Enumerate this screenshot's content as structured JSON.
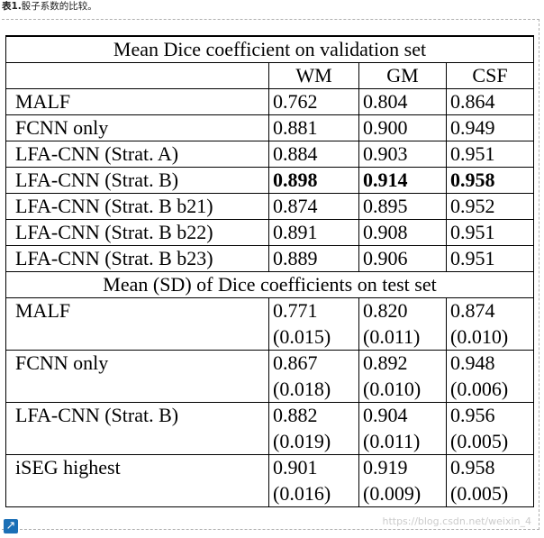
{
  "caption": {
    "prefix": "表1.",
    "text": "骰子系数的比较。"
  },
  "table": {
    "validation_title": "Mean Dice coefficient on validation set",
    "columns": [
      "WM",
      "GM",
      "CSF"
    ],
    "validation_rows": [
      {
        "label": "MALF",
        "wm": "0.762",
        "gm": "0.804",
        "csf": "0.864"
      },
      {
        "label": "FCNN only",
        "wm": "0.881",
        "gm": "0.900",
        "csf": "0.949"
      },
      {
        "label": "LFA-CNN (Strat. A)",
        "wm": "0.884",
        "gm": "0.903",
        "csf": "0.951"
      },
      {
        "label": "LFA-CNN (Strat. B)",
        "wm": "0.898",
        "gm": "0.914",
        "csf": "0.958"
      },
      {
        "label": "LFA-CNN (Strat. B b21)",
        "wm": "0.874",
        "gm": "0.895",
        "csf": "0.952"
      },
      {
        "label": "LFA-CNN (Strat. B b22)",
        "wm": "0.891",
        "gm": "0.908",
        "csf": "0.951"
      },
      {
        "label": "LFA-CNN (Strat. B b23)",
        "wm": "0.889",
        "gm": "0.906",
        "csf": "0.951"
      }
    ],
    "test_title": "Mean (SD) of Dice coefficients on test set",
    "test_rows": [
      {
        "label": "MALF",
        "wm": "0.771",
        "wm_sd": "(0.015)",
        "gm": "0.820",
        "gm_sd": "(0.011)",
        "csf": "0.874",
        "csf_sd": "(0.010)"
      },
      {
        "label": "FCNN only",
        "wm": "0.867",
        "wm_sd": "(0.018)",
        "gm": "0.892",
        "gm_sd": "(0.010)",
        "csf": "0.948",
        "csf_sd": "(0.006)"
      },
      {
        "label": "LFA-CNN (Strat. B)",
        "wm": "0.882",
        "wm_sd": "(0.019)",
        "gm": "0.904",
        "gm_sd": "(0.011)",
        "csf": "0.956",
        "csf_sd": "(0.005)"
      },
      {
        "label": "iSEG highest",
        "wm": "0.901",
        "wm_sd": "(0.016)",
        "gm": "0.919",
        "gm_sd": "(0.009)",
        "csf": "0.958",
        "csf_sd": "(0.005)"
      }
    ]
  },
  "icons": {
    "expand": "expand-arrow-icon"
  },
  "watermark": "https://blog.csdn.net/weixin_4"
}
